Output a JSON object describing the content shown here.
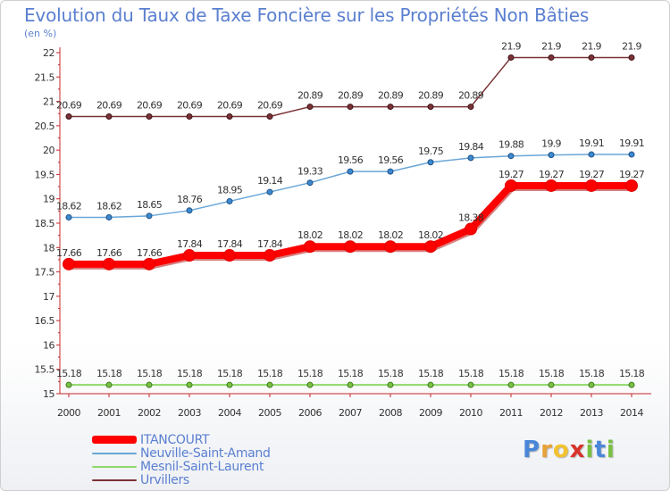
{
  "chart_data": {
    "type": "line",
    "title": "Evolution du Taux de Taxe Foncière sur les Propriétés Non Bâties",
    "subtitle": "(en %)",
    "x": [
      "2000",
      "2001",
      "2002",
      "2003",
      "2004",
      "2005",
      "2006",
      "2007",
      "2008",
      "2009",
      "2010",
      "2011",
      "2012",
      "2013",
      "2014"
    ],
    "ylim": [
      15,
      22
    ],
    "yticks": [
      "15",
      "15.5",
      "16",
      "16.5",
      "17",
      "17.5",
      "18",
      "18.5",
      "19",
      "19.5",
      "20",
      "20.5",
      "21",
      "21.5",
      "22"
    ],
    "grid": false,
    "legend_position": "bottom-left",
    "series": [
      {
        "name": "ITANCOURT",
        "color": "#ff0000",
        "values": [
          17.66,
          17.66,
          17.66,
          17.84,
          17.84,
          17.84,
          18.02,
          18.02,
          18.02,
          18.02,
          18.38,
          19.27,
          19.27,
          19.27,
          19.27
        ],
        "labels": [
          "17.66",
          "17.66",
          "17.66",
          "17.84",
          "17.84",
          "17.84",
          "18.02",
          "18.02",
          "18.02",
          "18.02",
          "18.38",
          "19.27",
          "19.27",
          "19.27",
          "19.27"
        ]
      },
      {
        "name": "Neuville-Saint-Amand",
        "color": "#6aa6d8",
        "values": [
          18.62,
          18.62,
          18.65,
          18.76,
          18.95,
          19.14,
          19.33,
          19.56,
          19.56,
          19.75,
          19.84,
          19.88,
          19.9,
          19.91,
          19.91
        ],
        "labels": [
          "18.62",
          "18.62",
          "18.65",
          "18.76",
          "18.95",
          "19.14",
          "19.33",
          "19.56",
          "19.56",
          "19.75",
          "19.84",
          "19.88",
          "19.9",
          "19.91",
          "19.91"
        ]
      },
      {
        "name": "Mesnil-Saint-Laurent",
        "color": "#8fd86a",
        "values": [
          15.18,
          15.18,
          15.18,
          15.18,
          15.18,
          15.18,
          15.18,
          15.18,
          15.18,
          15.18,
          15.18,
          15.18,
          15.18,
          15.18,
          15.18
        ],
        "labels": [
          "15.18",
          "15.18",
          "15.18",
          "15.18",
          "15.18",
          "15.18",
          "15.18",
          "15.18",
          "15.18",
          "15.18",
          "15.18",
          "15.18",
          "15.18",
          "15.18",
          "15.18"
        ]
      },
      {
        "name": "Urvillers",
        "color": "#7a3236",
        "values": [
          20.69,
          20.69,
          20.69,
          20.69,
          20.69,
          20.69,
          20.89,
          20.89,
          20.89,
          20.89,
          20.89,
          21.9,
          21.9,
          21.9,
          21.9
        ],
        "labels": [
          "20.69",
          "20.69",
          "20.69",
          "20.69",
          "20.69",
          "20.69",
          "20.89",
          "20.89",
          "20.89",
          "20.89",
          "20.89",
          "21.9",
          "21.9",
          "21.9",
          "21.9"
        ]
      }
    ]
  },
  "logo": {
    "letters": [
      "P",
      "r",
      "o",
      "x",
      "i",
      "t",
      "i"
    ],
    "colors": [
      "#4a86d8",
      "#e8a23a",
      "#f2c230",
      "#d8332b",
      "#7ac043",
      "#4a86d8",
      "#7ac043"
    ]
  }
}
